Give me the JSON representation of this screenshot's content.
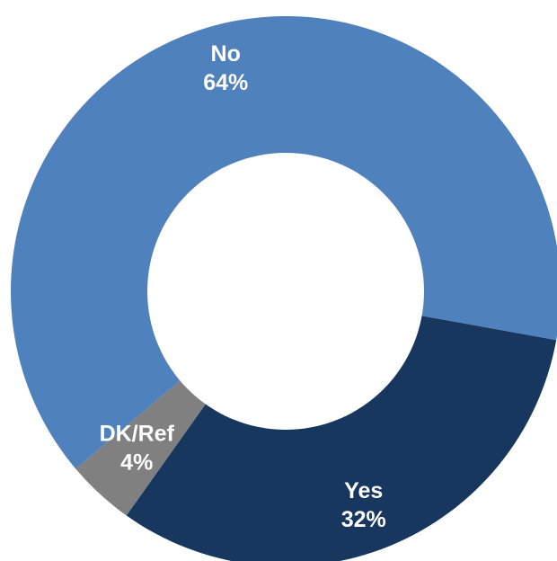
{
  "chart_data": {
    "type": "pie",
    "variant": "donut",
    "slices": [
      {
        "label": "Yes",
        "value": 32,
        "value_label": "32%",
        "color": "#17375E"
      },
      {
        "label": "DK/Ref",
        "value": 4,
        "value_label": "4%",
        "color": "#808080"
      },
      {
        "label": "No",
        "value": 64,
        "value_label": "64%",
        "color": "#4F81BD"
      }
    ],
    "legend": "none",
    "labels_on_slices": true
  }
}
